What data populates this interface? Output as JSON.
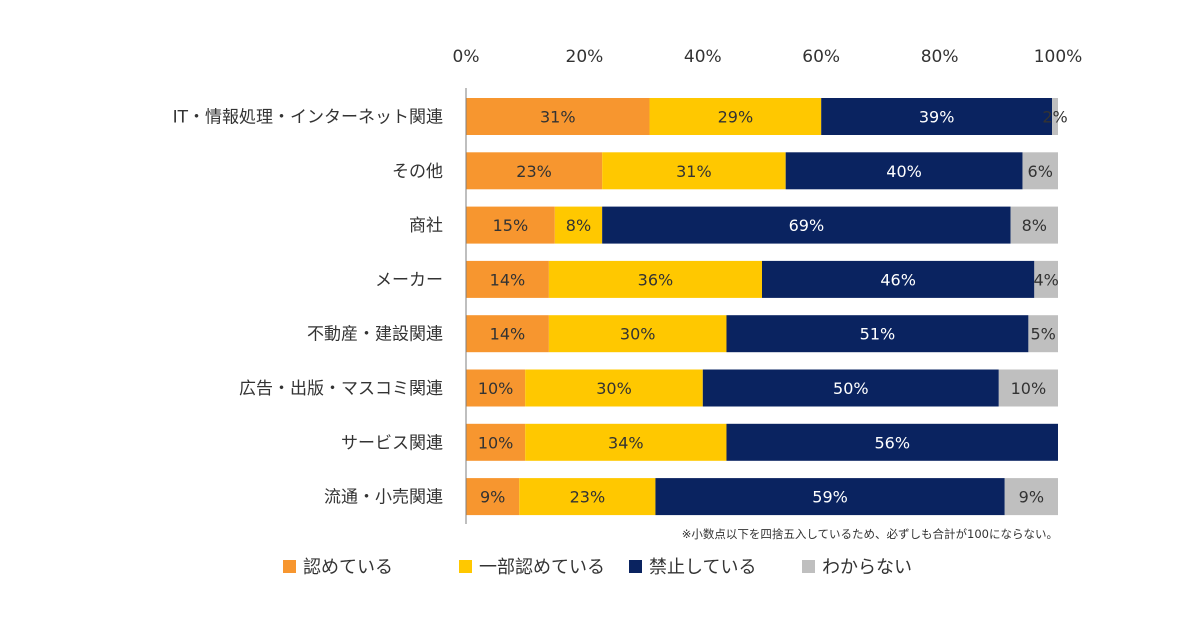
{
  "chart_data": {
    "type": "bar",
    "orientation": "horizontal",
    "stacked": true,
    "xlim": [
      0,
      100
    ],
    "x_ticks": [
      "0%",
      "20%",
      "40%",
      "60%",
      "80%",
      "100%"
    ],
    "grid": false,
    "legend_position": "bottom",
    "categories": [
      "IT・情報処理・インターネット関連",
      "その他",
      "商社",
      "メーカー",
      "不動産・建設関連",
      "広告・出版・マスコミ関連",
      "サービス関連",
      "流通・小売関連"
    ],
    "series": [
      {
        "name": "認めている",
        "color": "#F7962F",
        "label_color": "#333333",
        "values": [
          31,
          23,
          15,
          14,
          14,
          10,
          10,
          9
        ]
      },
      {
        "name": "一部認めている",
        "color": "#FFC800",
        "label_color": "#333333",
        "values": [
          29,
          31,
          8,
          36,
          30,
          30,
          34,
          23
        ]
      },
      {
        "name": "禁止している",
        "color": "#0A2360",
        "label_color": "#ffffff",
        "values": [
          39,
          40,
          69,
          46,
          51,
          50,
          56,
          59
        ]
      },
      {
        "name": "わからない",
        "color": "#BFBFBF",
        "label_color": "#333333",
        "values": [
          2,
          6,
          8,
          4,
          5,
          10,
          0,
          9
        ]
      }
    ],
    "note": "※小数点以下を四捨五入しているため、必ずしも合計が100にならない。"
  }
}
